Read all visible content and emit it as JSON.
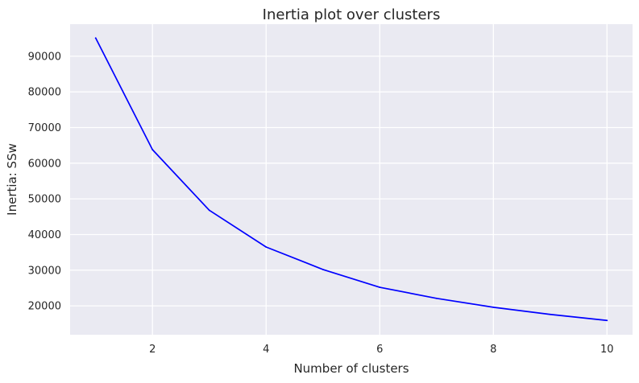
{
  "chart_data": {
    "type": "line",
    "title": "Inertia plot over clusters",
    "xlabel": "Number of clusters",
    "ylabel": "Inertia: SSw",
    "grid": true,
    "legend": "none",
    "xlim": [
      0.55,
      10.45
    ],
    "ylim": [
      11900,
      99000
    ],
    "x_ticks": [
      2,
      4,
      6,
      8,
      10
    ],
    "y_ticks": [
      20000,
      30000,
      40000,
      50000,
      60000,
      70000,
      80000,
      90000
    ],
    "x_tick_labels": [
      "2",
      "4",
      "6",
      "8",
      "10"
    ],
    "y_tick_labels": [
      "20000",
      "30000",
      "40000",
      "50000",
      "60000",
      "70000",
      "80000",
      "90000"
    ],
    "series": [
      {
        "x": [
          1,
          2,
          3,
          4,
          5,
          6,
          7,
          8,
          9,
          10
        ],
        "values": [
          95100,
          63800,
          46800,
          36500,
          30200,
          25200,
          22100,
          19600,
          17600,
          15900
        ],
        "color": "#0000ff"
      }
    ],
    "colors": {
      "plot_background": "#eaeaf2",
      "grid": "#ffffff",
      "text": "#262626"
    }
  }
}
